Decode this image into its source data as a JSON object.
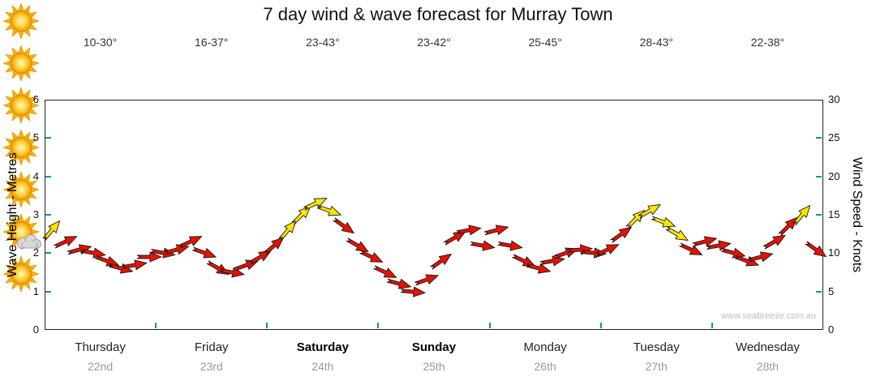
{
  "title": "7 day wind & wave forecast for Murray Town",
  "watermark": "www.seabreeze.com.au",
  "left_axis": {
    "label": "Wave Height - Metres",
    "min": 0,
    "max": 6,
    "ticks": [
      0,
      1,
      2,
      3,
      4,
      5,
      6
    ]
  },
  "right_axis": {
    "label": "Wind Speed - Knots",
    "min": 0,
    "max": 30,
    "ticks": [
      0,
      5,
      10,
      15,
      20,
      25,
      30
    ]
  },
  "days": [
    {
      "name": "Thursday",
      "date": "22nd",
      "temp": "10-30°",
      "icon": "sunny",
      "bold": false
    },
    {
      "name": "Friday",
      "date": "23rd",
      "temp": "16-37°",
      "icon": "sunny",
      "bold": false
    },
    {
      "name": "Saturday",
      "date": "24th",
      "temp": "23-43°",
      "icon": "sunny",
      "bold": true
    },
    {
      "name": "Sunday",
      "date": "25th",
      "temp": "23-42°",
      "icon": "sunny",
      "bold": true
    },
    {
      "name": "Monday",
      "date": "26th",
      "temp": "25-45°",
      "icon": "sunny",
      "bold": false
    },
    {
      "name": "Tuesday",
      "date": "27th",
      "temp": "28-43°",
      "icon": "partly-cloudy",
      "bold": false
    },
    {
      "name": "Wednesday",
      "date": "28th",
      "temp": "22-38°",
      "icon": "sunny",
      "bold": false
    }
  ],
  "chart_data": {
    "type": "scatter",
    "series_name": "Wind speed in knots (arrow glyphs show wind direction)",
    "points_per_day": 8,
    "ylim_knots": [
      0,
      30
    ],
    "ylim_metres": [
      0,
      6
    ],
    "color_map": {
      "R": "#e81000",
      "Y": "#ffe400"
    },
    "days": [
      {
        "day": "Thursday",
        "knots": [
          13,
          11.5,
          10.5,
          10,
          9,
          8,
          8.5,
          9.5
        ],
        "colors": [
          "Y",
          "R",
          "R",
          "R",
          "R",
          "R",
          "R",
          "R"
        ],
        "dirs": [
          -50,
          -25,
          -15,
          10,
          20,
          15,
          -10,
          0
        ]
      },
      {
        "day": "Friday",
        "knots": [
          10,
          10.5,
          11.5,
          10,
          8,
          7.5,
          8.5,
          9.5
        ],
        "colors": [
          "R",
          "R",
          "R",
          "R",
          "R",
          "R",
          "R",
          "R"
        ],
        "dirs": [
          10,
          -15,
          -25,
          20,
          30,
          10,
          -20,
          -30
        ]
      },
      {
        "day": "Saturday",
        "knots": [
          11,
          13,
          15,
          16.5,
          15.5,
          13.5,
          11,
          9.5
        ],
        "colors": [
          "R",
          "Y",
          "Y",
          "Y",
          "Y",
          "R",
          "R",
          "R"
        ],
        "dirs": [
          -40,
          -50,
          -45,
          -25,
          20,
          35,
          30,
          25
        ]
      },
      {
        "day": "Sunday",
        "knots": [
          7.5,
          6,
          5,
          6.5,
          9,
          12,
          13,
          11
        ],
        "colors": [
          "R",
          "R",
          "R",
          "R",
          "R",
          "R",
          "R",
          "R"
        ],
        "dirs": [
          25,
          15,
          5,
          -20,
          -35,
          -30,
          -10,
          10
        ]
      },
      {
        "day": "Monday",
        "knots": [
          13,
          11,
          9,
          8,
          9,
          10,
          10.5,
          10
        ],
        "colors": [
          "R",
          "R",
          "R",
          "R",
          "R",
          "R",
          "R",
          "R"
        ],
        "dirs": [
          -15,
          10,
          25,
          15,
          -10,
          -20,
          -5,
          5
        ]
      },
      {
        "day": "Tuesday",
        "knots": [
          10.5,
          12.5,
          14.5,
          15.5,
          14,
          12.5,
          10.5,
          11.5
        ],
        "colors": [
          "R",
          "R",
          "Y",
          "Y",
          "Y",
          "Y",
          "R",
          "R"
        ],
        "dirs": [
          -25,
          -35,
          -45,
          -30,
          20,
          30,
          25,
          -15
        ]
      },
      {
        "day": "Wednesday",
        "knots": [
          11,
          10,
          9,
          9.5,
          11.5,
          13.5,
          15,
          10.5
        ],
        "colors": [
          "R",
          "R",
          "R",
          "R",
          "R",
          "R",
          "Y",
          "R"
        ],
        "dirs": [
          -10,
          15,
          20,
          -15,
          -30,
          -45,
          -50,
          35
        ]
      }
    ]
  }
}
